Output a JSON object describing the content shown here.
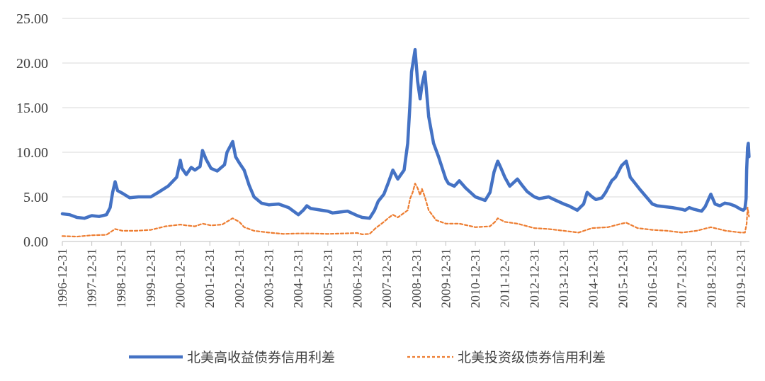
{
  "chart_data": {
    "type": "line",
    "title": "",
    "xlabel": "",
    "ylabel": "",
    "ylim": [
      0,
      25
    ],
    "yticks": [
      "0.00",
      "5.00",
      "10.00",
      "15.00",
      "20.00",
      "25.00"
    ],
    "xticks": [
      "1996-12-31",
      "1997-12-31",
      "1998-12-31",
      "1999-12-31",
      "2000-12-31",
      "2001-12-31",
      "2002-12-31",
      "2003-12-31",
      "2004-12-31",
      "2005-12-31",
      "2006-12-31",
      "2007-12-31",
      "2008-12-31",
      "2009-12-31",
      "2010-12-31",
      "2011-12-31",
      "2012-12-31",
      "2013-12-31",
      "2014-12-31",
      "2015-12-31",
      "2016-12-31",
      "2017-12-31",
      "2018-12-31",
      "2019-12-31"
    ],
    "xlim": [
      "1996-12-31",
      "2020-04-15"
    ],
    "grid": "horizontal",
    "legend_position": "bottom",
    "colors": {
      "high_yield": "#4472C4",
      "investment_grade": "#ED7D31",
      "grid": "#D9D9D9"
    },
    "series": [
      {
        "name": "北美高收益债券信用利差",
        "style": "solid",
        "x": [
          "1996-12-31",
          "1997-03-31",
          "1997-06-30",
          "1997-09-30",
          "1997-12-31",
          "1998-03-31",
          "1998-06-30",
          "1998-08-15",
          "1998-09-15",
          "1998-10-15",
          "1998-11-15",
          "1999-01-15",
          "1999-04-15",
          "1999-08-01",
          "1999-12-31",
          "2000-04-01",
          "2000-08-01",
          "2000-11-15",
          "2000-12-31",
          "2001-01-20",
          "2001-03-15",
          "2001-05-15",
          "2001-06-30",
          "2001-09-01",
          "2001-10-01",
          "2001-11-15",
          "2002-01-15",
          "2002-04-01",
          "2002-07-01",
          "2002-08-01",
          "2002-10-10",
          "2002-11-15",
          "2002-12-31",
          "2003-03-01",
          "2003-05-01",
          "2003-07-01",
          "2003-10-01",
          "2004-01-01",
          "2004-05-01",
          "2004-09-01",
          "2004-12-31",
          "2005-03-01",
          "2005-04-15",
          "2005-06-01",
          "2005-10-15",
          "2005-12-31",
          "2006-03-01",
          "2006-06-01",
          "2006-09-01",
          "2006-12-31",
          "2007-03-01",
          "2007-06-01",
          "2007-08-01",
          "2007-09-15",
          "2007-11-25",
          "2008-01-15",
          "2008-03-15",
          "2008-05-15",
          "2008-08-01",
          "2008-09-15",
          "2008-10-10",
          "2008-11-01",
          "2008-12-15",
          "2009-01-15",
          "2009-02-15",
          "2009-03-10",
          "2009-04-15",
          "2009-06-01",
          "2009-08-01",
          "2009-10-01",
          "2009-12-31",
          "2010-02-01",
          "2010-04-15",
          "2010-06-15",
          "2010-09-01",
          "2010-12-31",
          "2011-03-01",
          "2011-05-01",
          "2011-07-01",
          "2011-08-20",
          "2011-10-04",
          "2011-11-15",
          "2011-12-31",
          "2012-03-01",
          "2012-06-04",
          "2012-08-01",
          "2012-10-01",
          "2012-12-31",
          "2013-03-01",
          "2013-06-25",
          "2013-09-01",
          "2013-12-31",
          "2014-03-01",
          "2014-06-15",
          "2014-09-01",
          "2014-10-15",
          "2014-12-16",
          "2015-02-01",
          "2015-04-15",
          "2015-06-01",
          "2015-08-15",
          "2015-10-01",
          "2015-12-15",
          "2016-02-11",
          "2016-04-01",
          "2016-06-01",
          "2016-08-01",
          "2016-12-31",
          "2017-03-01",
          "2017-06-01",
          "2017-09-01",
          "2017-12-31",
          "2018-02-10",
          "2018-04-01",
          "2018-06-01",
          "2018-09-01",
          "2018-10-15",
          "2018-12-24",
          "2019-02-15",
          "2019-04-15",
          "2019-06-15",
          "2019-08-15",
          "2019-10-15",
          "2019-12-31",
          "2020-01-31",
          "2020-02-20",
          "2020-03-05",
          "2020-03-12",
          "2020-03-23",
          "2020-04-01",
          "2020-04-10"
        ],
        "values": [
          3.1,
          3.0,
          2.7,
          2.6,
          2.9,
          2.8,
          3.0,
          3.8,
          5.5,
          6.7,
          5.7,
          5.4,
          4.9,
          5.0,
          5.0,
          5.5,
          6.2,
          7.2,
          9.1,
          8.2,
          7.5,
          8.3,
          8.0,
          8.4,
          10.2,
          9.2,
          8.2,
          7.9,
          8.6,
          10.0,
          11.2,
          9.5,
          8.8,
          8.0,
          6.3,
          5.0,
          4.3,
          4.1,
          4.2,
          3.8,
          3.0,
          3.5,
          4.0,
          3.7,
          3.5,
          3.4,
          3.2,
          3.3,
          3.4,
          2.9,
          2.7,
          2.6,
          3.5,
          4.5,
          5.3,
          6.5,
          8.0,
          7.0,
          8.0,
          11.0,
          15.0,
          19.0,
          21.5,
          18.0,
          16.0,
          17.5,
          19.0,
          14.0,
          11.0,
          9.5,
          7.0,
          6.5,
          6.2,
          6.8,
          6.0,
          5.0,
          4.8,
          4.6,
          5.5,
          7.8,
          9.0,
          8.2,
          7.2,
          6.2,
          7.0,
          6.3,
          5.6,
          5.0,
          4.8,
          5.0,
          4.7,
          4.2,
          4.0,
          3.5,
          4.2,
          5.5,
          5.0,
          4.7,
          4.9,
          5.5,
          6.8,
          7.2,
          8.5,
          9.0,
          7.2,
          6.5,
          5.8,
          4.2,
          4.0,
          3.9,
          3.8,
          3.6,
          3.5,
          3.8,
          3.6,
          3.4,
          3.9,
          5.3,
          4.2,
          4.0,
          4.3,
          4.2,
          4.0,
          3.6,
          3.5,
          3.7,
          4.8,
          8.0,
          10.5,
          11.0,
          9.5
        ]
      },
      {
        "name": "北美投资级债券信用利差",
        "style": "dashed",
        "x": [
          "1996-12-31",
          "1997-06-30",
          "1997-12-31",
          "1998-06-30",
          "1998-10-15",
          "1999-01-15",
          "1999-06-30",
          "1999-12-31",
          "2000-06-30",
          "2000-12-31",
          "2001-03-15",
          "2001-06-30",
          "2001-10-01",
          "2002-01-15",
          "2002-06-01",
          "2002-10-10",
          "2002-12-31",
          "2003-03-01",
          "2003-07-01",
          "2003-12-31",
          "2004-06-30",
          "2004-12-31",
          "2005-06-30",
          "2005-12-31",
          "2006-06-30",
          "2006-12-31",
          "2007-03-01",
          "2007-06-01",
          "2007-08-15",
          "2007-11-25",
          "2008-01-15",
          "2008-03-15",
          "2008-05-15",
          "2008-09-15",
          "2008-10-15",
          "2008-11-15",
          "2008-12-15",
          "2009-01-15",
          "2009-02-15",
          "2009-03-10",
          "2009-04-15",
          "2009-06-01",
          "2009-09-01",
          "2009-12-31",
          "2010-06-15",
          "2010-12-31",
          "2011-06-30",
          "2011-09-01",
          "2011-10-04",
          "2011-12-31",
          "2012-06-04",
          "2012-12-31",
          "2013-06-25",
          "2013-12-31",
          "2014-06-30",
          "2014-12-16",
          "2015-06-30",
          "2015-12-15",
          "2016-02-11",
          "2016-06-30",
          "2016-12-31",
          "2017-06-30",
          "2017-12-31",
          "2018-06-30",
          "2018-12-24",
          "2019-06-30",
          "2019-12-31",
          "2020-02-20",
          "2020-03-12",
          "2020-03-23",
          "2020-04-10"
        ],
        "values": [
          0.6,
          0.55,
          0.7,
          0.75,
          1.4,
          1.2,
          1.2,
          1.3,
          1.7,
          1.9,
          1.8,
          1.7,
          2.0,
          1.8,
          1.9,
          2.6,
          2.2,
          1.6,
          1.2,
          1.0,
          0.85,
          0.9,
          0.9,
          0.85,
          0.9,
          0.95,
          0.8,
          0.85,
          1.5,
          2.2,
          2.6,
          3.0,
          2.7,
          3.5,
          4.8,
          5.5,
          6.5,
          6.0,
          5.2,
          5.9,
          5.0,
          3.5,
          2.4,
          2.0,
          2.0,
          1.6,
          1.7,
          2.2,
          2.6,
          2.2,
          2.0,
          1.5,
          1.4,
          1.2,
          1.0,
          1.5,
          1.6,
          2.0,
          2.1,
          1.5,
          1.3,
          1.2,
          1.0,
          1.2,
          1.6,
          1.2,
          1.0,
          1.0,
          2.0,
          3.8,
          2.8
        ]
      }
    ]
  }
}
